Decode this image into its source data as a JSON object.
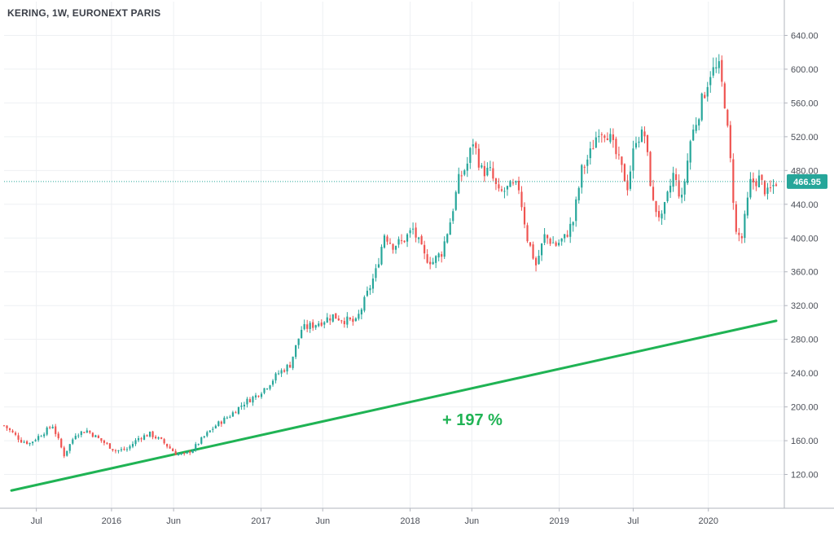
{
  "chart_data": {
    "type": "candlestick",
    "title": "KERING, 1W, EURONEXT PARIS",
    "ylim": [
      80,
      680
    ],
    "y_ticks": [
      "120.00",
      "160.00",
      "200.00",
      "240.00",
      "280.00",
      "320.00",
      "360.00",
      "400.00",
      "440.00",
      "480.00",
      "520.00",
      "560.00",
      "600.00",
      "640.00"
    ],
    "y_tick_values": [
      120,
      160,
      200,
      240,
      280,
      320,
      360,
      400,
      440,
      480,
      520,
      560,
      600,
      640
    ],
    "x_ticks": [
      "Jul",
      "2016",
      "Jun",
      "2017",
      "Jun",
      "2018",
      "Jun",
      "2019",
      "Jul",
      "2020"
    ],
    "x_tick_dates": [
      "2015-07-01",
      "2016-01-01",
      "2016-06-01",
      "2017-01-01",
      "2017-06-01",
      "2018-01-01",
      "2018-06-01",
      "2019-01-01",
      "2019-07-01",
      "2020-01-01"
    ],
    "x_range": [
      "2015-04-13",
      "2020-06-15"
    ],
    "last_price": {
      "value": 466.95,
      "label": "466.95"
    },
    "trendline": {
      "start": [
        "2015-05-01",
        101
      ],
      "end": [
        "2020-06-15",
        302
      ],
      "color": "#1fb354",
      "label": "+ 197 %"
    },
    "colors": {
      "up": "#26a69a",
      "down": "#ef5350",
      "grid": "#eef0f3",
      "axis": "#b2b5be",
      "text": "#4a4e57",
      "price_line": "#26a69a"
    },
    "grid": true,
    "anchors": [
      [
        "2015-04-13",
        178
      ],
      [
        "2015-05-25",
        160
      ],
      [
        "2015-06-15",
        157
      ],
      [
        "2015-07-06",
        165
      ],
      [
        "2015-08-10",
        178
      ],
      [
        "2015-09-07",
        143
      ],
      [
        "2015-10-05",
        168
      ],
      [
        "2015-11-02",
        172
      ],
      [
        "2015-12-07",
        160
      ],
      [
        "2016-01-11",
        148
      ],
      [
        "2016-02-08",
        150
      ],
      [
        "2016-03-07",
        163
      ],
      [
        "2016-04-04",
        168
      ],
      [
        "2016-05-02",
        160
      ],
      [
        "2016-06-06",
        145
      ],
      [
        "2016-06-27",
        143
      ],
      [
        "2016-07-18",
        150
      ],
      [
        "2016-08-15",
        165
      ],
      [
        "2016-09-12",
        178
      ],
      [
        "2016-10-17",
        190
      ],
      [
        "2016-11-21",
        205
      ],
      [
        "2016-12-19",
        213
      ],
      [
        "2017-01-16",
        225
      ],
      [
        "2017-02-13",
        240
      ],
      [
        "2017-03-13",
        250
      ],
      [
        "2017-04-10",
        292
      ],
      [
        "2017-05-08",
        297
      ],
      [
        "2017-06-05",
        303
      ],
      [
        "2017-06-26",
        308
      ],
      [
        "2017-07-24",
        303
      ],
      [
        "2017-08-21",
        300
      ],
      [
        "2017-09-11",
        325
      ],
      [
        "2017-10-09",
        360
      ],
      [
        "2017-10-30",
        405
      ],
      [
        "2017-11-20",
        392
      ],
      [
        "2017-12-11",
        395
      ],
      [
        "2018-01-08",
        410
      ],
      [
        "2018-02-05",
        378
      ],
      [
        "2018-02-26",
        372
      ],
      [
        "2018-03-19",
        383
      ],
      [
        "2018-04-09",
        420
      ],
      [
        "2018-04-30",
        468
      ],
      [
        "2018-05-21",
        488
      ],
      [
        "2018-06-04",
        515
      ],
      [
        "2018-06-25",
        480
      ],
      [
        "2018-07-16",
        478
      ],
      [
        "2018-08-06",
        452
      ],
      [
        "2018-09-03",
        460
      ],
      [
        "2018-09-24",
        460
      ],
      [
        "2018-10-15",
        400
      ],
      [
        "2018-11-05",
        368
      ],
      [
        "2018-11-26",
        402
      ],
      [
        "2018-12-24",
        392
      ],
      [
        "2019-01-14",
        400
      ],
      [
        "2019-02-04",
        420
      ],
      [
        "2019-02-25",
        480
      ],
      [
        "2019-03-18",
        500
      ],
      [
        "2019-04-08",
        530
      ],
      [
        "2019-04-29",
        525
      ],
      [
        "2019-05-27",
        490
      ],
      [
        "2019-06-17",
        462
      ],
      [
        "2019-07-08",
        520
      ],
      [
        "2019-07-29",
        522
      ],
      [
        "2019-08-19",
        440
      ],
      [
        "2019-09-09",
        422
      ],
      [
        "2019-10-07",
        475
      ],
      [
        "2019-10-28",
        445
      ],
      [
        "2019-11-18",
        515
      ],
      [
        "2019-12-09",
        550
      ],
      [
        "2020-01-06",
        597
      ],
      [
        "2020-01-27",
        600
      ],
      [
        "2020-02-10",
        562
      ],
      [
        "2020-02-24",
        490
      ],
      [
        "2020-03-09",
        405
      ],
      [
        "2020-03-23",
        400
      ],
      [
        "2020-04-13",
        465
      ],
      [
        "2020-05-04",
        470
      ],
      [
        "2020-05-25",
        452
      ],
      [
        "2020-06-15",
        467
      ]
    ],
    "anchors_note": "weekly close estimates read off the price axis"
  }
}
